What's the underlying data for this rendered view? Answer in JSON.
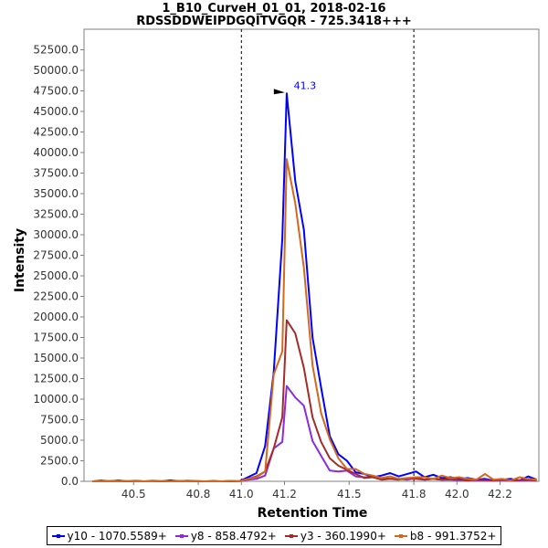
{
  "chart_data": {
    "type": "line",
    "title": "1_B10_CurveH_01_01, 2018-02-16",
    "subtitle": "RDSSDDWEIPDGQITVGQR - 725.3418+++",
    "xlabel": "Retention Time",
    "ylabel": "Intensity",
    "xlim": [
      40.27,
      42.38
    ],
    "ylim": [
      0,
      55000
    ],
    "xticks": [
      40.5,
      40.8,
      41.0,
      41.2,
      41.5,
      41.8,
      42.0,
      42.2
    ],
    "xtick_labels": [
      "40.5",
      "40.8",
      "41.0",
      "41.2",
      "41.5",
      "41.8",
      "42.0",
      "42.2"
    ],
    "yticks": [
      0,
      2500,
      5000,
      7500,
      10000,
      12500,
      15000,
      17500,
      20000,
      22500,
      25000,
      27500,
      30000,
      32500,
      35000,
      37500,
      40000,
      42500,
      45000,
      47500,
      50000,
      52500
    ],
    "ytick_labels": [
      "0.0",
      "2500.0",
      "5000.0",
      "7500.0",
      "10000.0",
      "12500.0",
      "15000.0",
      "17500.0",
      "20000.0",
      "22500.0",
      "25000.0",
      "27500.0",
      "30000.0",
      "32500.0",
      "35000.0",
      "37500.0",
      "40000.0",
      "42500.0",
      "45000.0",
      "47500.0",
      "50000.0",
      "52500.0"
    ],
    "vertical_lines": [
      41.0,
      41.8
    ],
    "annotation": {
      "text": "41.3",
      "x": 41.21,
      "y": 47300,
      "color": "#0000ff"
    },
    "x": [
      40.31,
      40.35,
      40.39,
      40.43,
      40.47,
      40.51,
      40.55,
      40.59,
      40.63,
      40.67,
      40.71,
      40.75,
      40.79,
      40.83,
      40.87,
      40.91,
      40.95,
      40.99,
      41.03,
      41.07,
      41.11,
      41.15,
      41.19,
      41.21,
      41.25,
      41.29,
      41.33,
      41.37,
      41.41,
      41.45,
      41.49,
      41.53,
      41.57,
      41.61,
      41.65,
      41.69,
      41.73,
      41.77,
      41.81,
      41.85,
      41.89,
      41.93,
      41.97,
      42.01,
      42.05,
      42.09,
      42.13,
      42.17,
      42.21,
      42.25,
      42.29,
      42.33,
      42.37
    ],
    "series": [
      {
        "name": "y10 - 1070.5589+",
        "color": "#0000ff",
        "width": 2,
        "values": [
          0,
          80,
          0,
          100,
          0,
          60,
          0,
          50,
          0,
          120,
          0,
          50,
          30,
          0,
          40,
          0,
          30,
          0,
          500,
          1000,
          4300,
          13300,
          29500,
          47200,
          36500,
          30600,
          17500,
          11400,
          5500,
          3300,
          2500,
          1100,
          900,
          500,
          700,
          1000,
          600,
          900,
          1200,
          500,
          800,
          400,
          500,
          300,
          400,
          200,
          300,
          100,
          200,
          300,
          100,
          600,
          200
        ]
      },
      {
        "name": "y8 - 858.4792+",
        "color": "#8a2be2",
        "width": 2,
        "values": [
          0,
          0,
          40,
          0,
          0,
          20,
          0,
          0,
          0,
          40,
          0,
          0,
          0,
          0,
          0,
          0,
          20,
          0,
          200,
          300,
          700,
          4000,
          4800,
          11600,
          10200,
          9200,
          4900,
          3100,
          1300,
          1200,
          1300,
          600,
          500,
          500,
          400,
          300,
          300,
          200,
          400,
          200,
          300,
          200,
          200,
          150,
          200,
          100,
          150,
          100,
          150,
          100,
          100,
          150,
          100
        ]
      },
      {
        "name": "y3 - 360.1990+",
        "color": "#a52a2a",
        "width": 2,
        "values": [
          0,
          0,
          0,
          30,
          0,
          0,
          0,
          20,
          0,
          0,
          40,
          0,
          0,
          0,
          0,
          0,
          0,
          20,
          300,
          600,
          1200,
          4000,
          7800,
          19600,
          18000,
          13800,
          7800,
          4800,
          2800,
          1900,
          1400,
          900,
          400,
          500,
          200,
          300,
          200,
          400,
          300,
          200,
          300,
          200,
          300,
          200,
          100,
          200,
          150,
          100,
          200,
          100,
          150,
          200,
          100
        ]
      },
      {
        "name": "b8 - 991.3752+",
        "color": "#d2691e",
        "width": 2,
        "values": [
          0,
          0,
          0,
          0,
          40,
          0,
          0,
          0,
          40,
          0,
          0,
          0,
          30,
          0,
          0,
          0,
          50,
          0,
          300,
          500,
          1200,
          13000,
          15800,
          39200,
          33800,
          26000,
          14100,
          8300,
          5100,
          2800,
          1500,
          1500,
          900,
          700,
          400,
          600,
          300,
          400,
          500,
          500,
          300,
          700,
          400,
          500,
          300,
          200,
          900,
          200,
          300,
          100,
          500,
          300,
          200
        ]
      }
    ],
    "legend": "bottom",
    "grid": false
  },
  "legend_items": [
    {
      "label": "y10 - 1070.5589+",
      "color": "#0000ff"
    },
    {
      "label": "y8 - 858.4792+",
      "color": "#8a2be2"
    },
    {
      "label": "y3 - 360.1990+",
      "color": "#a52a2a"
    },
    {
      "label": "b8 - 991.3752+",
      "color": "#d2691e"
    }
  ]
}
